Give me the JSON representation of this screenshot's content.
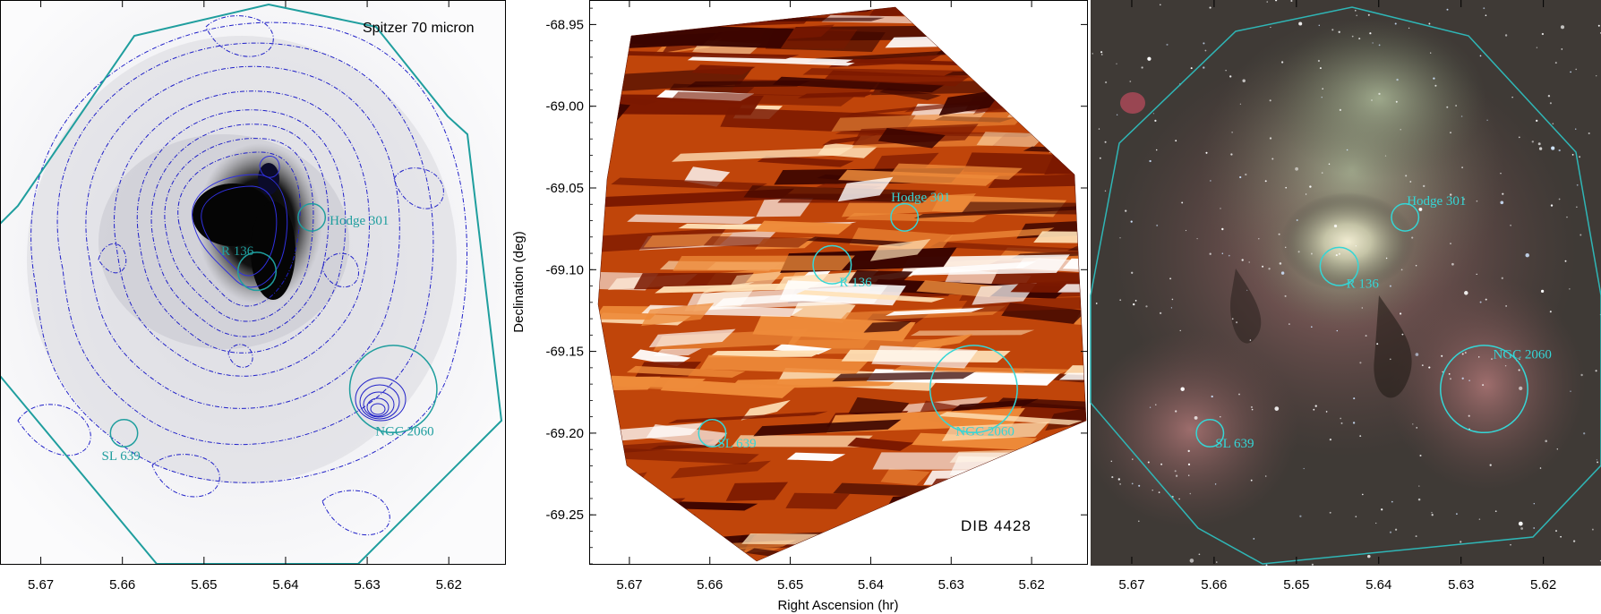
{
  "chart_data": [
    {
      "type": "heatmap",
      "panel": "left",
      "title": "Spitzer 70 micron",
      "xlabel": "",
      "ylabel": "",
      "xlim": [
        5.675,
        5.613
      ],
      "ylim": [
        -69.28,
        -68.935
      ],
      "x_ticks": [
        "5.67",
        "5.66",
        "5.65",
        "5.64",
        "5.63",
        "5.62"
      ],
      "y_ticks": [],
      "contours": true,
      "colors": {
        "contour": "#2020c8",
        "boundary": "#1f9e9e",
        "background": "#f3f3f6",
        "peak": "#000000"
      },
      "regions": [
        {
          "name": "Hodge 301",
          "ra": 5.6368,
          "dec": -69.068,
          "r_arcmin": 0.5
        },
        {
          "name": "R 136",
          "ra": 5.6435,
          "dec": -69.101,
          "r_arcmin": 0.7
        },
        {
          "name": "NGC 2060",
          "ra": 5.6268,
          "dec": -69.173,
          "r_arcmin": 1.6
        },
        {
          "name": "SL 639",
          "ra": 5.6598,
          "dec": -69.2,
          "r_arcmin": 0.5
        }
      ]
    },
    {
      "type": "heatmap",
      "panel": "middle",
      "title": "DIB 4428",
      "xlabel": "Right Ascension (hr)",
      "ylabel": "Declination (deg)",
      "xlim": [
        5.675,
        5.613
      ],
      "ylim": [
        -69.28,
        -68.935
      ],
      "x_ticks": [
        "5.67",
        "5.66",
        "5.65",
        "5.64",
        "5.63",
        "5.62"
      ],
      "y_ticks": [
        "-68.95",
        "-69.00",
        "-69.05",
        "-69.10",
        "-69.15",
        "-69.20",
        "-69.25"
      ],
      "colormap": [
        "#3a0400",
        "#7a1800",
        "#c0450a",
        "#ee8b3a",
        "#ffe2b8",
        "#ffffff"
      ],
      "colors": {
        "region": "#2fc7c7"
      },
      "regions": [
        {
          "name": "Hodge 301",
          "ra": 5.6358,
          "dec": -69.068,
          "r_arcmin": 0.5
        },
        {
          "name": "R 136",
          "ra": 5.6448,
          "dec": -69.097,
          "r_arcmin": 0.7
        },
        {
          "name": "NGC 2060",
          "ra": 5.6272,
          "dec": -69.173,
          "r_arcmin": 1.6
        },
        {
          "name": "SL 639",
          "ra": 5.6597,
          "dec": -69.2,
          "r_arcmin": 0.5
        }
      ]
    },
    {
      "type": "heatmap",
      "panel": "right",
      "title": "",
      "xlabel": "",
      "ylabel": "",
      "xlim": [
        5.675,
        5.613
      ],
      "ylim": [
        -69.28,
        -68.935
      ],
      "x_ticks": [
        "5.67",
        "5.66",
        "5.65",
        "5.64",
        "5.63",
        "5.62"
      ],
      "y_ticks": [],
      "colors": {
        "boundary": "#2fb6b6",
        "region": "#35d6d6",
        "background": "#3f3a36"
      },
      "regions": [
        {
          "name": "Hodge 301",
          "ra": 5.6368,
          "dec": -69.068,
          "r_arcmin": 0.5
        },
        {
          "name": "R 136",
          "ra": 5.6448,
          "dec": -69.098,
          "r_arcmin": 0.7
        },
        {
          "name": "NGC 2060",
          "ra": 5.6272,
          "dec": -69.173,
          "r_arcmin": 1.6
        },
        {
          "name": "SL 639",
          "ra": 5.6605,
          "dec": -69.2,
          "r_arcmin": 0.5
        }
      ]
    }
  ]
}
